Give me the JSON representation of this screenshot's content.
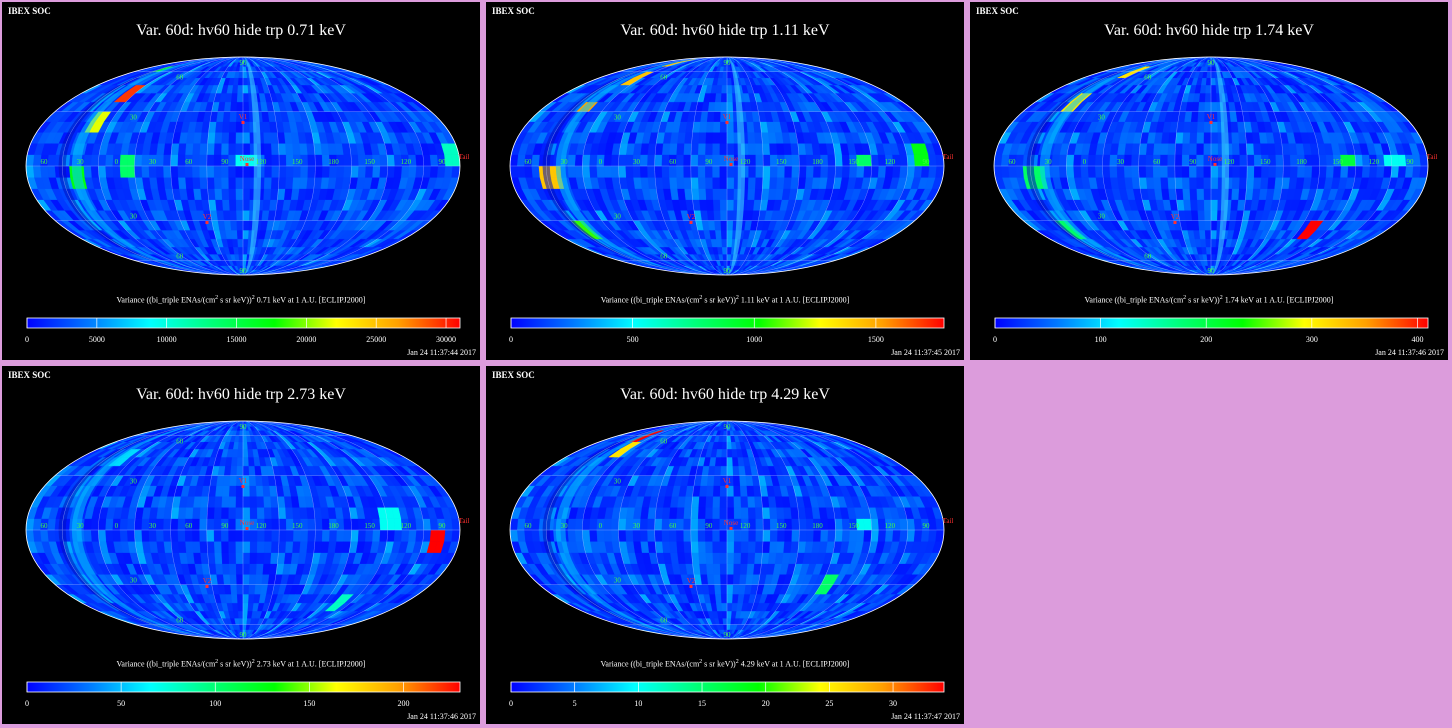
{
  "header": "IBEX SOC",
  "cb_prefix": "Variance ((bi_triple ENAs/(cm",
  "cb_mid": " s sr keV))",
  "cb_suffix_tmpl": "{e} at 1 A.U. [ECLIPJ2000]",
  "labels": {
    "v1": "V1",
    "v2": "V2",
    "nose": "Nose",
    "tail": "Tail",
    "lon": [
      "60",
      "30",
      "0",
      "30",
      "60",
      "90",
      "120",
      "150",
      "180",
      "150",
      "120",
      "90"
    ],
    "lat": [
      "90",
      "60",
      "30",
      "30",
      "60",
      "90"
    ]
  },
  "colormap": [
    "#0000ff",
    "#0078ff",
    "#00ffff",
    "#00ff78",
    "#00ff00",
    "#ffff00",
    "#ffa000",
    "#ff0000"
  ],
  "chart_data": [
    {
      "type": "heatmap",
      "title": "Var. 60d: hv60 hide trp 0.71 keV",
      "energy": "0.71 keV",
      "colorbar_ticks": [
        "0",
        "5000",
        "10000",
        "15000",
        "20000",
        "25000",
        "30000"
      ],
      "clim": [
        0,
        31000
      ],
      "timestamp": "Jan 24 11:37:44 2017"
    },
    {
      "type": "heatmap",
      "title": "Var. 60d: hv60 hide trp 1.11 keV",
      "energy": "1.11 keV",
      "colorbar_ticks": [
        "0",
        "500",
        "1000",
        "1500"
      ],
      "clim": [
        0,
        1780
      ],
      "timestamp": "Jan 24 11:37:45 2017"
    },
    {
      "type": "heatmap",
      "title": "Var. 60d: hv60 hide trp 1.74 keV",
      "energy": "1.74 keV",
      "colorbar_ticks": [
        "0",
        "100",
        "200",
        "300",
        "400"
      ],
      "clim": [
        0,
        410
      ],
      "timestamp": "Jan 24 11:37:46 2017"
    },
    {
      "type": "heatmap",
      "title": "Var. 60d: hv60 hide trp 2.73 keV",
      "energy": "2.73 keV",
      "colorbar_ticks": [
        "0",
        "50",
        "100",
        "150",
        "200"
      ],
      "clim": [
        0,
        230
      ],
      "timestamp": "Jan 24 11:37:46 2017"
    },
    {
      "type": "heatmap",
      "title": "Var. 60d: hv60 hide trp 4.29 keV",
      "energy": "4.29 keV",
      "colorbar_ticks": [
        "0",
        "5",
        "10",
        "15",
        "20",
        "25",
        "30"
      ],
      "clim": [
        0,
        34
      ],
      "timestamp": "Jan 24 11:37:47 2017"
    }
  ]
}
